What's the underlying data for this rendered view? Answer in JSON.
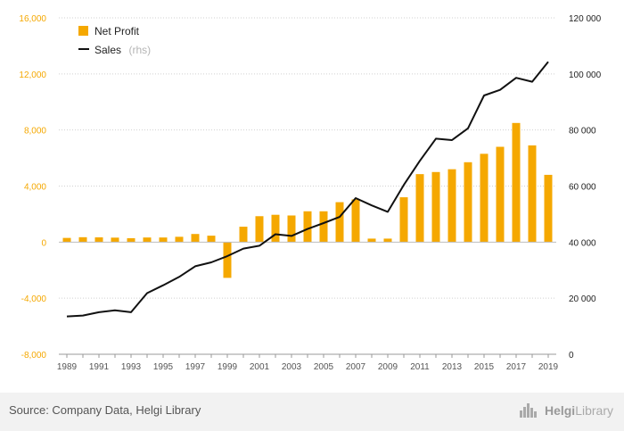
{
  "chart_data": {
    "type": "bar+line",
    "x": [
      1989,
      1990,
      1991,
      1992,
      1993,
      1994,
      1995,
      1996,
      1997,
      1998,
      1999,
      2000,
      2001,
      2002,
      2003,
      2004,
      2005,
      2006,
      2007,
      2008,
      2009,
      2010,
      2011,
      2012,
      2013,
      2014,
      2015,
      2016,
      2017,
      2018,
      2019
    ],
    "x_tick_labels": [
      "1989",
      "1991",
      "1993",
      "1995",
      "1997",
      "1999",
      "2001",
      "2003",
      "2005",
      "2007",
      "2009",
      "2011",
      "2013",
      "2015",
      "2017",
      "2019"
    ],
    "series": [
      {
        "name": "Net Profit",
        "type": "bar",
        "axis": "left",
        "color": "#f5a800",
        "values": [
          300,
          350,
          340,
          320,
          280,
          330,
          330,
          380,
          580,
          460,
          -2550,
          1100,
          1850,
          1950,
          1900,
          2200,
          2200,
          2850,
          3050,
          250,
          250,
          3200,
          4850,
          5000,
          5200,
          5700,
          6300,
          6800,
          8500,
          6900,
          4800
        ]
      },
      {
        "name": "Sales",
        "name_note": "(rhs)",
        "type": "line",
        "axis": "right",
        "color": "#111111",
        "values": [
          13500,
          13800,
          15000,
          15700,
          15000,
          21800,
          24600,
          27600,
          31400,
          32800,
          35000,
          37700,
          38700,
          42800,
          42200,
          44700,
          46800,
          49000,
          55700,
          53100,
          50800,
          60400,
          69000,
          76900,
          76400,
          80600,
          92300,
          94300,
          98600,
          97200,
          104300
        ]
      }
    ],
    "y_left": {
      "range": [
        -8000,
        16000
      ],
      "ticks": [
        "-8,000",
        "-4,000",
        "0",
        "4,000",
        "8,000",
        "12,000",
        "16,000"
      ],
      "tick_values": [
        -8000,
        -4000,
        0,
        4000,
        8000,
        12000,
        16000
      ]
    },
    "y_right": {
      "range": [
        0,
        120000
      ],
      "ticks": [
        "0",
        "20 000",
        "40 000",
        "60 000",
        "80 000",
        "100 000",
        "120 000"
      ],
      "tick_values": [
        0,
        20000,
        40000,
        60000,
        80000,
        100000,
        120000
      ]
    },
    "grid": "horizontal dotted",
    "legend_position": "top-left"
  },
  "footer": {
    "source": "Source: Company Data, Helgi Library",
    "brand_prefix": "Helgi",
    "brand_suffix": "Library",
    "logo_icon": "city-skyline-icon"
  }
}
